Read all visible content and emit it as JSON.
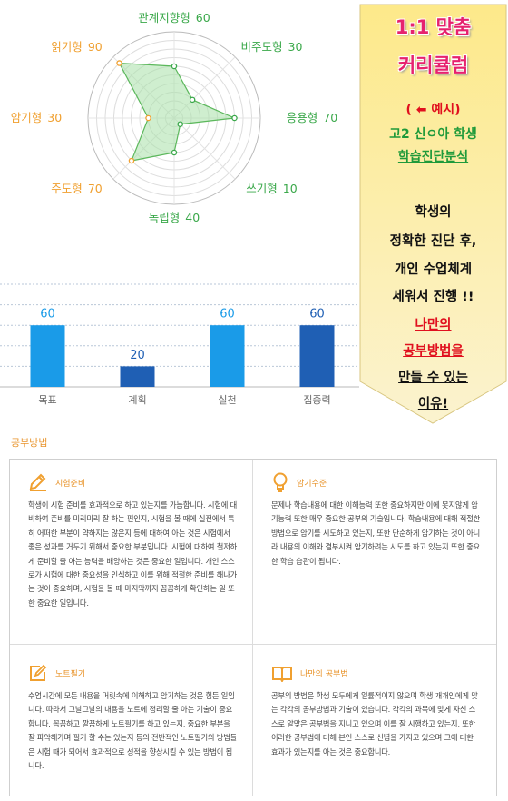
{
  "chart_data": [
    {
      "type": "radar",
      "categories": [
        "관계지향형",
        "비주도형",
        "응용형",
        "쓰기형",
        "독립형",
        "주도형",
        "암기형",
        "읽기형"
      ],
      "values": [
        60,
        30,
        70,
        10,
        40,
        70,
        30,
        90
      ],
      "label_colors": [
        "#3aa84a",
        "#3aa84a",
        "#3aa84a",
        "#3aa84a",
        "#3aa84a",
        "#f0a030",
        "#f0a030",
        "#f0a030"
      ],
      "color": "#5cb85c",
      "fill": "#a8e0a8",
      "rlim": [
        0,
        100
      ],
      "rticks": [
        10,
        20,
        30,
        40,
        50,
        60,
        70,
        80,
        90,
        100
      ],
      "grid": true
    },
    {
      "type": "bar",
      "categories": [
        "목표",
        "계획",
        "실천",
        "집중력"
      ],
      "values": [
        60,
        20,
        60,
        60
      ],
      "colors": [
        "#1a9be8",
        "#1f5fb4",
        "#1a9be8",
        "#1f5fb4"
      ],
      "ylim": [
        0,
        100
      ],
      "yticks": [
        0,
        20,
        40,
        60,
        80,
        100
      ],
      "grid": true
    }
  ],
  "banner": {
    "title": [
      "1:1 맞춤",
      "커리큘럼"
    ],
    "example": "( ⬅ 예시)",
    "student": "고2 신ㅇ아 학생",
    "analysis": "학습진단분석",
    "body": [
      "학생의",
      "정확한 진단 후,",
      "개인 수업체계",
      "세워서 진행 !!"
    ],
    "highlight": [
      "나만의",
      "공부방법을"
    ],
    "ending": [
      "만들 수 있는",
      "이유!"
    ]
  },
  "section": {
    "title": "공부방법",
    "cards": [
      {
        "title": "시험준비",
        "text": "학생이 시험 준비를 효과적으로 하고 있는지를 가늠합니다. 시험에 대비하여 준비를 미리미리 잘 하는 편인지, 시험을 볼 때에 실전에서 특히 어떠한 부분이 약하지는 않은지 등에 대하여 아는 것은 시험에서 좋은 성과를 거두기 위해서 중요한 부분입니다. 시험에 대하여 철저하게 준비할 줄 아는 능력을 배양하는 것은 중요한 일입니다. 개인 스스로가 시험에 대한 중요성을 인식하고 이를 위해 적절한 준비를 해나가는 것이 중요하며, 시험을 볼 때 마지막까지 꼼꼼하게 확인하는 일 또한 중요한 일입니다."
      },
      {
        "title": "암기수준",
        "text": "문제나 학습내용에 대한 이해능력 또한 중요하지만 이에 못지않게 암기능력 또한 매우 중요한 공부의 기술입니다. 학습내용에 대해 적절한 방법으로 암기를 시도하고 있는지, 또한 단순하게 암기하는 것이 아니라 내용의 이해와 결부시켜 암기하려는 시도를 하고 있는지 또한 중요한 학습 습관이 됩니다."
      },
      {
        "title": "노트필기",
        "text": "수업시간에 모든 내용을 머릿속에 이해하고 암기하는 것은 힘든 일입니다. 따라서 그날그날의 내용을 노트에 정리할 줄 아는 기술이 중요합니다. 꼼꼼하고 깔끔하게 노트필기를 하고 있는지, 중요한 부분을 잘 파악해가며 필기 할 수는 있는지 등의 전반적인 노트필기의 방법들은 시험 때가 되어서 효과적으로 성적을 향상시킬 수 있는 방법이 됩니다."
      },
      {
        "title": "나만의 공부법",
        "text": "공부의 방법은 학생 모두에게 일률적이지 않으며 학생 개개인에게 맞는 각각의 공부방법과 기술이 있습니다. 각각의 과목에 맞게 자신 스스로 알맞은 공부법을 지니고 있으며 이를 잘 시행하고 있는지, 또한 이러한 공부법에 대해 본인 스스로 신념을 가지고 있으며 그에 대한 효과가 있는지를 아는 것은 중요합니다."
      }
    ]
  }
}
